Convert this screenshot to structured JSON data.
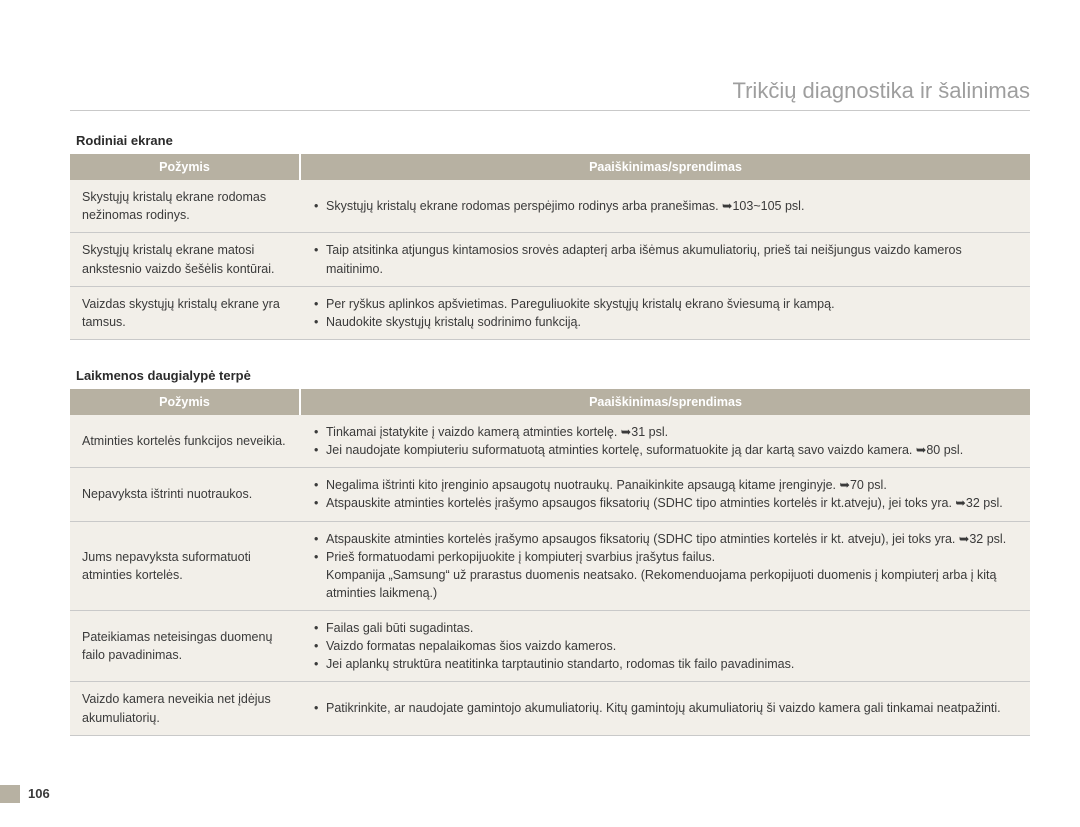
{
  "page_title": "Trikčių diagnostika ir šalinimas",
  "page_number": "106",
  "colors": {
    "header_bg": "#b7b1a2",
    "header_fg": "#ffffff",
    "row_bg": "#f2efe9",
    "border": "#c9c9c9",
    "title_fg": "#9e9e9e",
    "text": "#3a3a3a"
  },
  "sections": [
    {
      "heading": "Rodiniai ekrane",
      "col_symptom": "Požymis",
      "col_explain": "Paaiškinimas/sprendimas",
      "rows": [
        {
          "symptom": "Skystųjų kristalų ekrane rodomas nežinomas rodinys.",
          "items": [
            "Skystųjų kristalų ekrane rodomas perspėjimo rodinys arba pranešimas. ➥103~105 psl."
          ]
        },
        {
          "symptom": "Skystųjų kristalų ekrane matosi ankstesnio vaizdo šešėlis kontūrai.",
          "items": [
            "Taip atsitinka atjungus kintamosios srovės adapterį arba išėmus akumuliatorių, prieš tai neišjungus vaizdo kameros maitinimo."
          ]
        },
        {
          "symptom": "Vaizdas skystųjų kristalų ekrane yra tamsus.",
          "items": [
            "Per ryškus aplinkos apšvietimas. Pareguliuokite skystųjų kristalų ekrano šviesumą ir kampą.",
            "Naudokite skystųjų kristalų sodrinimo funkciją."
          ]
        }
      ]
    },
    {
      "heading": "Laikmenos daugialypė terpė",
      "col_symptom": "Požymis",
      "col_explain": "Paaiškinimas/sprendimas",
      "rows": [
        {
          "symptom": "Atminties kortelės funkcijos neveikia.",
          "items": [
            "Tinkamai įstatykite į vaizdo kamerą atminties kortelę. ➥31 psl.",
            "Jei naudojate kompiuteriu suformatuotą atminties kortelę, suformatuokite ją dar kartą savo vaizdo kamera. ➥80 psl."
          ]
        },
        {
          "symptom": "Nepavyksta ištrinti nuotraukos.",
          "items": [
            "Negalima ištrinti kito įrenginio apsaugotų nuotraukų. Panaikinkite apsaugą kitame įrenginyje. ➥70 psl.",
            "Atspauskite atminties kortelės įrašymo apsaugos fiksatorių (SDHC tipo atminties kortelės ir kt.atveju), jei toks yra. ➥32 psl."
          ]
        },
        {
          "symptom": "Jums nepavyksta suformatuoti atminties kortelės.",
          "items": [
            "Atspauskite atminties kortelės įrašymo apsaugos fiksatorių (SDHC tipo atminties kortelės ir kt. atveju), jei toks yra. ➥32 psl.",
            "Prieš formatuodami perkopijuokite į kompiuterį svarbius įrašytus failus.\nKompanija „Samsung“ už prarastus duomenis neatsako. (Rekomenduojama perkopijuoti duomenis į kompiuterį arba į kitą atminties laikmeną.)"
          ]
        },
        {
          "symptom": "Pateikiamas neteisingas duomenų failo pavadinimas.",
          "items": [
            "Failas gali būti sugadintas.",
            "Vaizdo formatas nepalaikomas šios vaizdo kameros.",
            "Jei aplankų struktūra neatitinka tarptautinio standarto, rodomas tik failo pavadinimas."
          ]
        },
        {
          "symptom": "Vaizdo kamera neveikia net įdėjus akumuliatorių.",
          "items": [
            "Patikrinkite, ar naudojate gamintojo akumuliatorių. Kitų gamintojų akumuliatorių ši vaizdo kamera gali tinkamai neatpažinti."
          ]
        }
      ]
    }
  ]
}
